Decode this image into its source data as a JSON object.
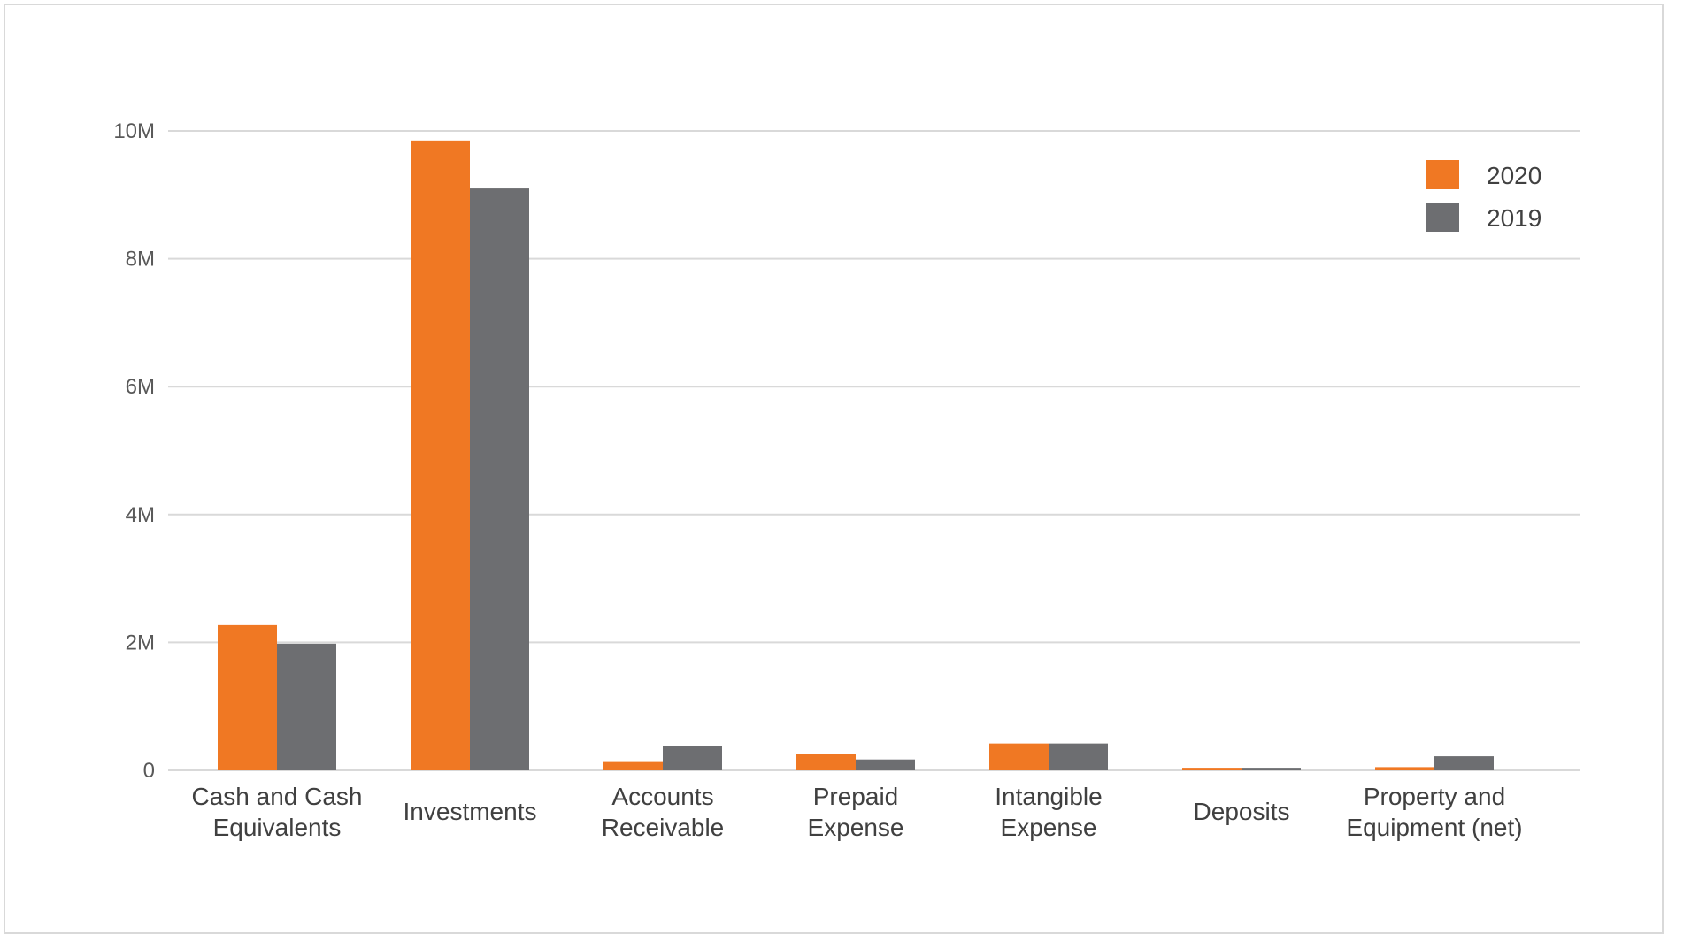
{
  "chart_data": {
    "type": "bar",
    "title": "",
    "xlabel": "",
    "ylabel": "",
    "categories": [
      [
        "Cash and Cash",
        "Equivalents"
      ],
      [
        "Investments"
      ],
      [
        "Accounts",
        "Receivable"
      ],
      [
        "Prepaid",
        "Expense"
      ],
      [
        "Intangible",
        "Expense"
      ],
      [
        "Deposits"
      ],
      [
        "Property and",
        "Equipment (net)"
      ]
    ],
    "series": [
      {
        "name": "2020",
        "color": "#f07823",
        "values": [
          2270000,
          9850000,
          130000,
          260000,
          420000,
          40000,
          50000
        ]
      },
      {
        "name": "2019",
        "color": "#6d6e71",
        "values": [
          1980000,
          9100000,
          380000,
          170000,
          420000,
          40000,
          220000
        ]
      }
    ],
    "ylim": [
      0,
      10000000
    ],
    "yticks": [
      {
        "value": 0,
        "label": "0"
      },
      {
        "value": 2000000,
        "label": "2M"
      },
      {
        "value": 4000000,
        "label": "4M"
      },
      {
        "value": 6000000,
        "label": "6M"
      },
      {
        "value": 8000000,
        "label": "8M"
      },
      {
        "value": 10000000,
        "label": "10M"
      }
    ],
    "grid": true,
    "legend_position": "top-right"
  }
}
